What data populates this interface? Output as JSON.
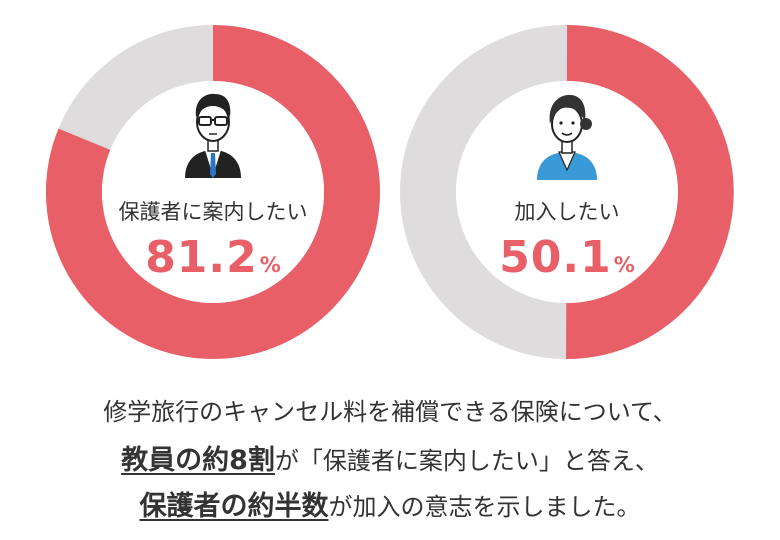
{
  "chart_data": [
    {
      "type": "pie",
      "labels": [
        "保護者に案内したい"
      ],
      "values": [
        81.2
      ],
      "value_text": "81.2",
      "unit": "%",
      "remaining": 18.8,
      "icon": "man-in-suit-icon"
    },
    {
      "type": "pie",
      "labels": [
        "加入したい"
      ],
      "values": [
        50.1
      ],
      "value_text": "50.1",
      "unit": "%",
      "remaining": 49.9,
      "icon": "woman-icon"
    }
  ],
  "colors": {
    "accent": "#e85f68",
    "track": "#dedcdd"
  },
  "caption": {
    "line1": "修学旅行のキャンセル料を補償できる保険について、",
    "line2_bold": "教員の約8割",
    "line2_rest": "が「保護者に案内したい」と答え、",
    "line3_bold": "保護者の約半数",
    "line3_rest": "が加入の意志を示しました。"
  }
}
